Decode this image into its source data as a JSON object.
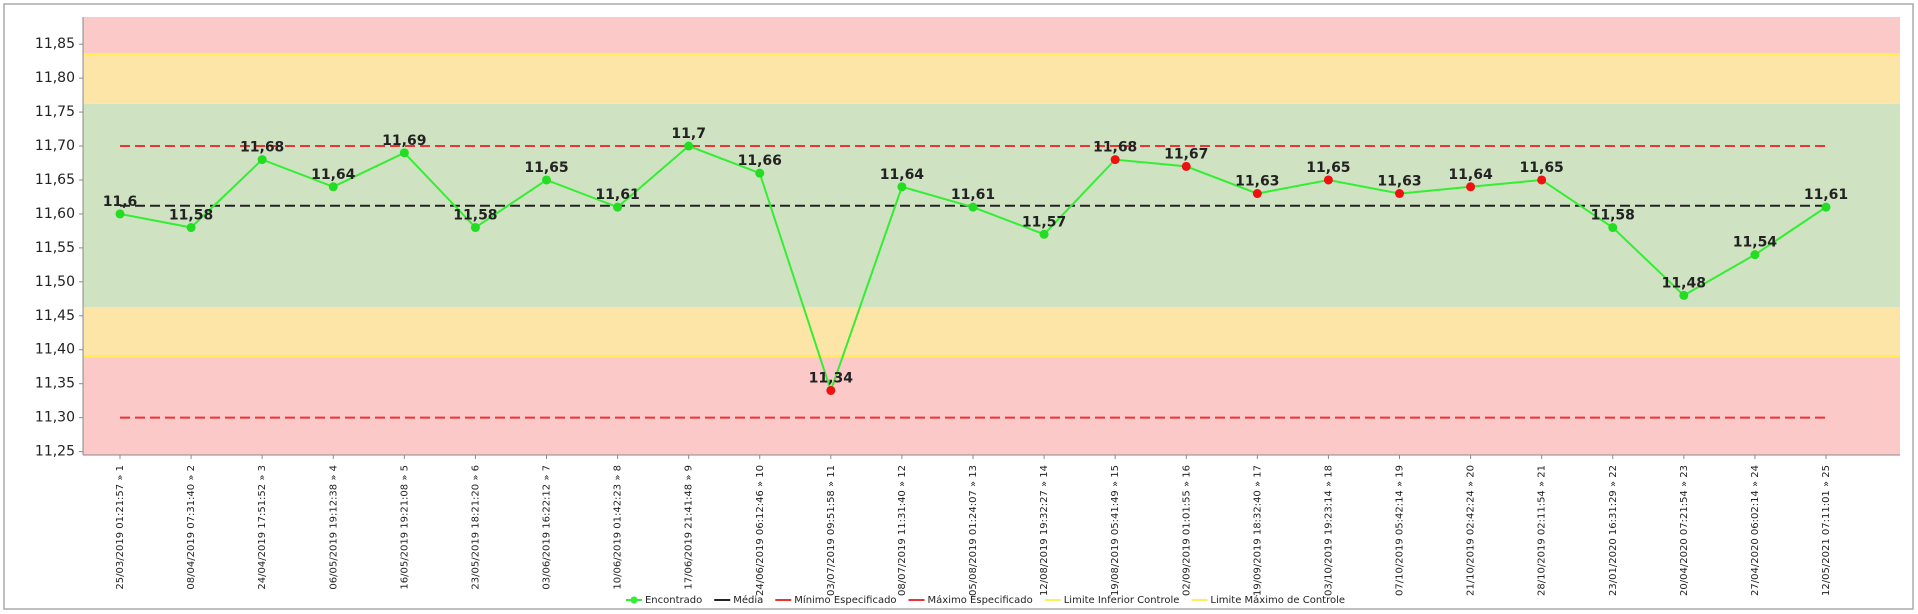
{
  "chart_data": {
    "type": "line",
    "ylim": [
      11.245,
      11.89
    ],
    "yticks": [
      {
        "value": 11.25,
        "label": "11,25"
      },
      {
        "value": 11.3,
        "label": "11,30"
      },
      {
        "value": 11.35,
        "label": "11,35"
      },
      {
        "value": 11.4,
        "label": "11,40"
      },
      {
        "value": 11.45,
        "label": "11,45"
      },
      {
        "value": 11.5,
        "label": "11,50"
      },
      {
        "value": 11.55,
        "label": "11,55"
      },
      {
        "value": 11.6,
        "label": "11,60"
      },
      {
        "value": 11.65,
        "label": "11,65"
      },
      {
        "value": 11.7,
        "label": "11,70"
      },
      {
        "value": 11.75,
        "label": "11,75"
      },
      {
        "value": 11.8,
        "label": "11,80"
      },
      {
        "value": 11.85,
        "label": "11,85"
      }
    ],
    "categories": [
      "25/03/2019 01:21:57 » 1",
      "08/04/2019 07:31:40 » 2",
      "24/04/2019 17:51:52 » 3",
      "06/05/2019 19:12:38 » 4",
      "16/05/2019 19:21:08 » 5",
      "23/05/2019 18:21:20 » 6",
      "03/06/2019 16:22:12 » 7",
      "10/06/2019 01:42:23 » 8",
      "17/06/2019 21:41:48 » 9",
      "24/06/2019 06:12:46 » 10",
      "03/07/2019 09:51:58 » 11",
      "08/07/2019 11:31:40 » 12",
      "05/08/2019 01:24:07 » 13",
      "12/08/2019 19:32:27 » 14",
      "19/08/2019 05:41:49 » 15",
      "02/09/2019 01:01:55 » 16",
      "19/09/2019 18:32:40 » 17",
      "03/10/2019 19:23:14 » 18",
      "07/10/2019 05:42:14 » 19",
      "21/10/2019 02:42:24 » 20",
      "28/10/2019 02:11:54 » 21",
      "23/01/2020 16:31:29 » 22",
      "20/04/2020 07:21:54 » 23",
      "27/04/2020 06:02:14 » 24",
      "12/05/2021 07:11:01 » 25"
    ],
    "series": [
      {
        "name": "Encontrado",
        "color": "#33ee33",
        "values": [
          11.6,
          11.58,
          11.68,
          11.64,
          11.69,
          11.58,
          11.65,
          11.61,
          11.7,
          11.66,
          11.34,
          11.64,
          11.61,
          11.57,
          11.68,
          11.67,
          11.63,
          11.65,
          11.63,
          11.64,
          11.65,
          11.58,
          11.48,
          11.54,
          11.61
        ],
        "value_labels": [
          "11,6",
          "11,58",
          "11,68",
          "11,64",
          "11,69",
          "11,58",
          "11,65",
          "11,61",
          "11,7",
          "11,66",
          "11,34",
          "11,64",
          "11,61",
          "11,57",
          "11,68",
          "11,67",
          "11,63",
          "11,65",
          "11,63",
          "11,64",
          "11,65",
          "11,58",
          "11,48",
          "11,54",
          "11,61"
        ],
        "point_colors": [
          "#22dd22",
          "#22dd22",
          "#22dd22",
          "#22dd22",
          "#22dd22",
          "#22dd22",
          "#22dd22",
          "#22dd22",
          "#22dd22",
          "#22dd22",
          "#ee1111",
          "#22dd22",
          "#22dd22",
          "#22dd22",
          "#ee1111",
          "#ee1111",
          "#ee1111",
          "#ee1111",
          "#ee1111",
          "#ee1111",
          "#ee1111",
          "#22dd22",
          "#22dd22",
          "#22dd22",
          "#22dd22"
        ]
      }
    ],
    "reference_lines": [
      {
        "name": "Média",
        "color": "#222222",
        "value": 11.612,
        "dashed": true
      },
      {
        "name": "Mínimo Especificado",
        "color": "#ee3333",
        "value": 11.3,
        "dashed": true
      },
      {
        "name": "Máximo Especificado",
        "color": "#ee3333",
        "value": 11.7,
        "dashed": true
      },
      {
        "name": "Limite Inferior Controle",
        "color": "#ffee55",
        "value": 11.39,
        "dashed": false
      },
      {
        "name": "Limite Máximo de Controle",
        "color": "#ffee55",
        "value": 11.835,
        "dashed": false
      }
    ],
    "zones": [
      {
        "from": 11.245,
        "to": 11.39,
        "color": "#fcc9c9"
      },
      {
        "from": 11.39,
        "to": 11.463,
        "color": "#fde5a7"
      },
      {
        "from": 11.463,
        "to": 11.762,
        "color": "#cfe2c2"
      },
      {
        "from": 11.762,
        "to": 11.835,
        "color": "#fde5a7"
      },
      {
        "from": 11.835,
        "to": 11.89,
        "color": "#fcc9c9"
      }
    ]
  }
}
